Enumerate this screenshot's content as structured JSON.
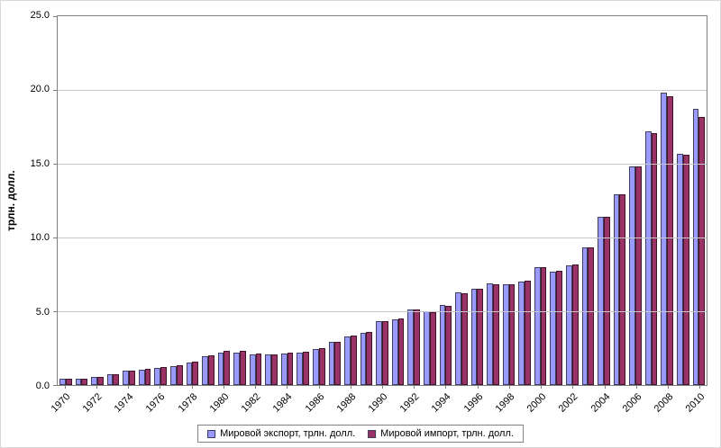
{
  "chart_data": {
    "type": "bar",
    "title": "",
    "ylabel": "трлн. долл.",
    "ylim": [
      0,
      25
    ],
    "yticks": [
      0,
      5,
      10,
      15,
      20,
      25
    ],
    "ytick_labels": [
      "0.0",
      "5.0",
      "10.0",
      "15.0",
      "20.0",
      "25.0"
    ],
    "grid": true,
    "legend_position": "bottom",
    "categories": [
      "1970",
      "1971",
      "1972",
      "1973",
      "1974",
      "1975",
      "1976",
      "1977",
      "1978",
      "1979",
      "1980",
      "1981",
      "1982",
      "1983",
      "1984",
      "1985",
      "1986",
      "1987",
      "1988",
      "1989",
      "1990",
      "1991",
      "1992",
      "1993",
      "1994",
      "1995",
      "1996",
      "1997",
      "1998",
      "1999",
      "2000",
      "2001",
      "2002",
      "2003",
      "2004",
      "2005",
      "2006",
      "2007",
      "2008",
      "2009",
      "2010"
    ],
    "xtick_labels": [
      "1970",
      "1972",
      "1974",
      "1976",
      "1978",
      "1980",
      "1982",
      "1984",
      "1986",
      "1988",
      "1990",
      "1992",
      "1994",
      "1996",
      "1998",
      "2000",
      "2002",
      "2004",
      "2006",
      "2008",
      "2010"
    ],
    "series": [
      {
        "key": "export",
        "name": "Мировой экспорт, трлн. долл.",
        "color": "#9999ff",
        "border_color": "#40405a",
        "values": [
          0.4,
          0.45,
          0.55,
          0.75,
          1.0,
          1.05,
          1.15,
          1.3,
          1.55,
          1.95,
          2.2,
          2.2,
          2.1,
          2.05,
          2.15,
          2.2,
          2.45,
          2.9,
          3.3,
          3.55,
          4.3,
          4.45,
          5.1,
          5.0,
          5.4,
          6.3,
          6.5,
          6.9,
          6.8,
          7.0,
          8.0,
          7.7,
          8.1,
          9.3,
          11.4,
          12.9,
          14.8,
          17.2,
          19.8,
          15.7,
          18.7
        ]
      },
      {
        "key": "import",
        "name": "Мировой импорт, трлн. долл.",
        "color": "#993366",
        "border_color": "#3d1429",
        "values": [
          0.4,
          0.45,
          0.55,
          0.75,
          1.0,
          1.1,
          1.2,
          1.35,
          1.6,
          2.0,
          2.3,
          2.3,
          2.15,
          2.1,
          2.2,
          2.25,
          2.5,
          2.9,
          3.35,
          3.6,
          4.35,
          4.5,
          5.1,
          4.95,
          5.35,
          6.25,
          6.5,
          6.85,
          6.8,
          7.05,
          8.0,
          7.75,
          8.15,
          9.35,
          11.4,
          12.9,
          14.8,
          17.1,
          19.6,
          15.6,
          18.2
        ]
      }
    ],
    "colors": {
      "gridline": "#c8c8c8",
      "plot_border": "#808080",
      "background": "#ffffff"
    }
  }
}
